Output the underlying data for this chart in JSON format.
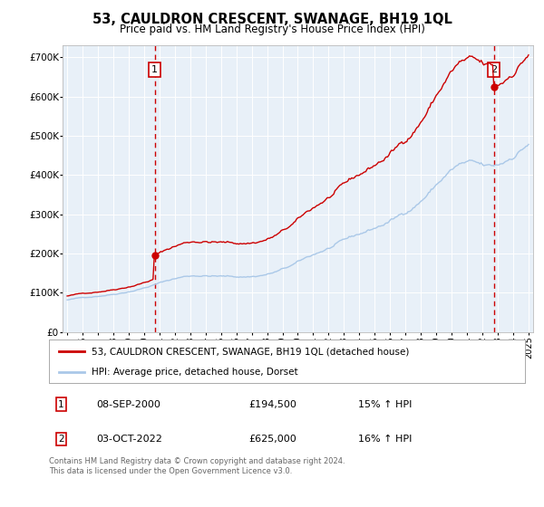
{
  "title": "53, CAULDRON CRESCENT, SWANAGE, BH19 1QL",
  "subtitle": "Price paid vs. HM Land Registry's House Price Index (HPI)",
  "legend_line1": "53, CAULDRON CRESCENT, SWANAGE, BH19 1QL (detached house)",
  "legend_line2": "HPI: Average price, detached house, Dorset",
  "annotation1_label": "1",
  "annotation1_date": "08-SEP-2000",
  "annotation1_price": "£194,500",
  "annotation1_hpi": "15% ↑ HPI",
  "annotation2_label": "2",
  "annotation2_date": "03-OCT-2022",
  "annotation2_price": "£625,000",
  "annotation2_hpi": "16% ↑ HPI",
  "footnote": "Contains HM Land Registry data © Crown copyright and database right 2024.\nThis data is licensed under the Open Government Licence v3.0.",
  "red_color": "#cc0000",
  "blue_color": "#aac8e8",
  "background_plot": "#e8f0f8",
  "background_fig": "#ffffff",
  "grid_color": "#ffffff",
  "point1_x": 2000.69,
  "point1_y": 194500,
  "point2_x": 2022.75,
  "point2_y": 625000,
  "ylim": [
    0,
    730000
  ],
  "xlim": [
    1994.7,
    2025.3
  ],
  "yticks": [
    0,
    100000,
    200000,
    300000,
    400000,
    500000,
    600000,
    700000
  ],
  "xticks": [
    1995,
    1996,
    1997,
    1998,
    1999,
    2000,
    2001,
    2002,
    2003,
    2004,
    2005,
    2006,
    2007,
    2008,
    2009,
    2010,
    2011,
    2012,
    2013,
    2014,
    2015,
    2016,
    2017,
    2018,
    2019,
    2020,
    2021,
    2022,
    2023,
    2024,
    2025
  ]
}
